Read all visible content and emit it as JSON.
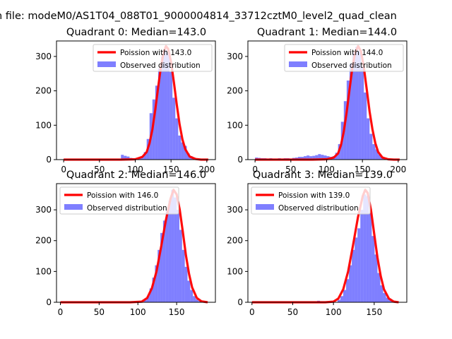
{
  "suptitle": "n file: modeM0/AS1T04_088T01_9000004814_33712cztM0_level2_quad_clean",
  "colors": {
    "model": "#ff0000",
    "observed": "#0000ff",
    "observed_alpha": 0.5,
    "axes": "#000000"
  },
  "chart_data": [
    {
      "type": "bar+line",
      "title": "Quadrant 0: Median=143.0",
      "median": 143.0,
      "legend": {
        "model": "Poission with 143.0",
        "observed": "Observed distribution",
        "placement": "top-right"
      },
      "xlim": [
        -10,
        212
      ],
      "ylim": [
        0,
        345
      ],
      "xticks": [
        0,
        50,
        100,
        150,
        200
      ],
      "yticks": [
        0,
        100,
        200,
        300
      ],
      "bin_width": 4,
      "bins_left": [
        80,
        84,
        88,
        92,
        96,
        100,
        104,
        108,
        112,
        116,
        120,
        124,
        128,
        132,
        136,
        140,
        144,
        148,
        152,
        156,
        160,
        164,
        168,
        172,
        176,
        180
      ],
      "observed": [
        14,
        11,
        9,
        5,
        4,
        3,
        5,
        10,
        22,
        60,
        135,
        175,
        215,
        265,
        300,
        320,
        310,
        255,
        180,
        120,
        70,
        50,
        40,
        18,
        10,
        6
      ],
      "model_x": [
        0,
        40,
        80,
        100,
        110,
        116,
        120,
        124,
        128,
        132,
        136,
        140,
        143,
        146,
        150,
        154,
        158,
        162,
        166,
        170,
        176,
        184,
        192,
        202
      ],
      "model_y": [
        0,
        0,
        0,
        1,
        8,
        22,
        48,
        88,
        145,
        210,
        272,
        314,
        330,
        322,
        284,
        225,
        160,
        102,
        58,
        30,
        9,
        2,
        0,
        0
      ]
    },
    {
      "type": "bar+line",
      "title": "Quadrant 1: Median=144.0",
      "median": 144.0,
      "legend": {
        "model": "Poission with 144.0",
        "observed": "Observed distribution",
        "placement": "top-right"
      },
      "xlim": [
        -10,
        212
      ],
      "ylim": [
        0,
        345
      ],
      "xticks": [
        0,
        50,
        100,
        150,
        200
      ],
      "yticks": [
        0,
        100,
        200,
        300
      ],
      "bin_width": 4,
      "bins_left": [
        0,
        4,
        8,
        12,
        16,
        20,
        24,
        28,
        32,
        36,
        40,
        44,
        48,
        52,
        56,
        60,
        64,
        68,
        72,
        76,
        80,
        84,
        88,
        92,
        96,
        100,
        104,
        108,
        112,
        116,
        120,
        124,
        128,
        132,
        136,
        140,
        144,
        148,
        152,
        156,
        160,
        164,
        168,
        172,
        176,
        180
      ],
      "observed": [
        6,
        5,
        4,
        4,
        3,
        4,
        3,
        3,
        4,
        3,
        4,
        4,
        3,
        5,
        6,
        8,
        8,
        10,
        12,
        10,
        11,
        13,
        16,
        14,
        12,
        10,
        8,
        10,
        20,
        45,
        110,
        170,
        230,
        280,
        312,
        328,
        315,
        270,
        195,
        120,
        75,
        45,
        30,
        15,
        8,
        4
      ],
      "model_x": [
        0,
        40,
        80,
        100,
        110,
        116,
        120,
        124,
        128,
        132,
        136,
        140,
        144,
        148,
        152,
        156,
        160,
        164,
        168,
        172,
        178,
        186,
        194,
        202
      ],
      "model_y": [
        0,
        0,
        0,
        1,
        6,
        18,
        42,
        82,
        138,
        204,
        268,
        312,
        330,
        315,
        268,
        205,
        140,
        88,
        48,
        22,
        6,
        1,
        0,
        0
      ]
    },
    {
      "type": "bar+line",
      "title": "Quadrant 2: Median=146.0",
      "median": 146.0,
      "legend": {
        "model": "Poission with 146.0",
        "observed": "Observed distribution",
        "placement": "top-left"
      },
      "xlim": [
        -5,
        200
      ],
      "ylim": [
        0,
        385
      ],
      "xticks": [
        0,
        50,
        100,
        150
      ],
      "yticks": [
        0,
        100,
        200,
        300
      ],
      "bin_width": 3.5,
      "bins_left": [
        108,
        111.5,
        115,
        118.5,
        122,
        125.5,
        129,
        132.5,
        136,
        139.5,
        143,
        146.5,
        150,
        153.5,
        157,
        160.5,
        164,
        167.5,
        171,
        174.5,
        178
      ],
      "observed": [
        8,
        20,
        45,
        80,
        120,
        170,
        225,
        265,
        300,
        330,
        365,
        340,
        300,
        235,
        170,
        115,
        70,
        40,
        20,
        10,
        4
      ],
      "model_x": [
        0,
        50,
        90,
        105,
        112,
        118,
        124,
        130,
        136,
        142,
        146,
        150,
        154,
        158,
        162,
        166,
        170,
        176,
        182,
        190
      ],
      "model_y": [
        0,
        0,
        0,
        2,
        14,
        45,
        100,
        180,
        265,
        335,
        365,
        350,
        300,
        228,
        152,
        92,
        48,
        14,
        3,
        0
      ]
    },
    {
      "type": "bar+line",
      "title": "Quadrant 3: Median=139.0",
      "median": 139.0,
      "legend": {
        "model": "Poission with 139.0",
        "observed": "Observed distribution",
        "placement": "top-left"
      },
      "xlim": [
        -5,
        190
      ],
      "ylim": [
        0,
        385
      ],
      "xticks": [
        0,
        50,
        100,
        150
      ],
      "yticks": [
        0,
        100,
        200,
        300
      ],
      "bin_width": 3.5,
      "bins_left": [
        80,
        105,
        108.5,
        112,
        115.5,
        119,
        122.5,
        126,
        129.5,
        133,
        136.5,
        140,
        143.5,
        147,
        150.5,
        154,
        157.5,
        161,
        164.5,
        168,
        171.5
      ],
      "observed": [
        5,
        8,
        20,
        40,
        75,
        120,
        170,
        210,
        240,
        300,
        350,
        345,
        290,
        215,
        155,
        95,
        55,
        30,
        15,
        8,
        3
      ],
      "model_x": [
        0,
        50,
        90,
        100,
        106,
        112,
        118,
        124,
        130,
        136,
        139,
        142,
        146,
        150,
        154,
        158,
        162,
        168,
        174,
        180
      ],
      "model_y": [
        0,
        0,
        0,
        2,
        12,
        42,
        100,
        185,
        275,
        345,
        365,
        355,
        300,
        222,
        145,
        85,
        42,
        12,
        2,
        0
      ]
    }
  ]
}
